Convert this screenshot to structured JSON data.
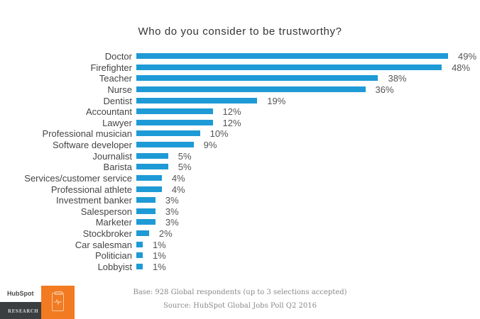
{
  "chart_data": {
    "type": "bar",
    "orientation": "horizontal",
    "title": "Who do you consider to be trustworthy?",
    "xlabel": "",
    "ylabel": "",
    "grid": false,
    "legend": null,
    "value_suffix": "%",
    "categories": [
      "Doctor",
      "Firefighter",
      "Teacher",
      "Nurse",
      "Dentist",
      "Accountant",
      "Lawyer",
      "Professional musician",
      "Software developer",
      "Journalist",
      "Barista",
      "Services/customer service",
      "Professional athlete",
      "Investment banker",
      "Salesperson",
      "Marketer",
      "Stockbroker",
      "Car salesman",
      "Politician",
      "Lobbyist"
    ],
    "values": [
      49,
      48,
      38,
      36,
      19,
      12,
      12,
      10,
      9,
      5,
      5,
      4,
      4,
      3,
      3,
      3,
      2,
      1,
      1,
      1
    ],
    "bar_color": "#1e9ad6"
  },
  "rows": [
    {
      "label": "Doctor",
      "value": "49%",
      "pct": 49
    },
    {
      "label": "Firefighter",
      "value": "48%",
      "pct": 48
    },
    {
      "label": "Teacher",
      "value": "38%",
      "pct": 38
    },
    {
      "label": "Nurse",
      "value": "36%",
      "pct": 36
    },
    {
      "label": "Dentist",
      "value": "19%",
      "pct": 19
    },
    {
      "label": "Accountant",
      "value": "12%",
      "pct": 12
    },
    {
      "label": "Lawyer",
      "value": "12%",
      "pct": 12
    },
    {
      "label": "Professional musician",
      "value": "10%",
      "pct": 10
    },
    {
      "label": "Software developer",
      "value": "9%",
      "pct": 9
    },
    {
      "label": "Journalist",
      "value": "5%",
      "pct": 5
    },
    {
      "label": "Barista",
      "value": "5%",
      "pct": 5
    },
    {
      "label": "Services/customer service",
      "value": "4%",
      "pct": 4
    },
    {
      "label": "Professional athlete",
      "value": "4%",
      "pct": 4
    },
    {
      "label": "Investment banker",
      "value": "3%",
      "pct": 3
    },
    {
      "label": "Salesperson",
      "value": "3%",
      "pct": 3
    },
    {
      "label": "Marketer",
      "value": "3%",
      "pct": 3
    },
    {
      "label": "Stockbroker",
      "value": "2%",
      "pct": 2
    },
    {
      "label": "Car salesman",
      "value": "1%",
      "pct": 1
    },
    {
      "label": "Politician",
      "value": "1%",
      "pct": 1
    },
    {
      "label": "Lobbyist",
      "value": "1%",
      "pct": 1
    }
  ],
  "footer": {
    "base": "Base: 928 Global respondents (up to 3 selections accepted)",
    "source": "Source: HubSpot Global Jobs Poll Q2 2016"
  },
  "logo": {
    "brand": "HubSpot",
    "section": "RESEARCH",
    "icon": "clipboard-pulse-icon",
    "accent": "#f27a21"
  }
}
